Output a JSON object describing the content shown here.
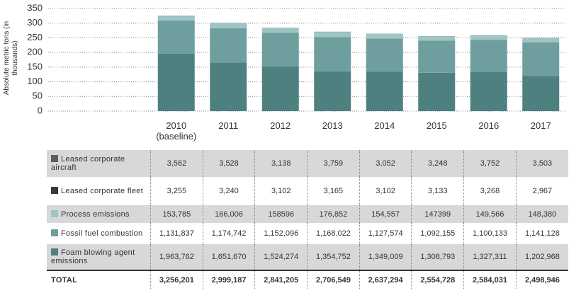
{
  "chart_data": {
    "type": "stacked-bar",
    "y_label": "Absolute metric tons (in thousands)",
    "categories": [
      "2010 (baseline)",
      "2011",
      "2012",
      "2013",
      "2014",
      "2015",
      "2016",
      "2017"
    ],
    "series": [
      {
        "name": "Foam blowing agent emissions",
        "color": "#4e8080",
        "values": [
          196.4,
          165.2,
          152.4,
          135.5,
          134.9,
          130.9,
          132.7,
          120.3
        ]
      },
      {
        "name": "Fossil fuel combustion",
        "color": "#6e9f9e",
        "values": [
          113.2,
          117.5,
          115.2,
          116.8,
          112.8,
          109.2,
          110.0,
          114.1
        ]
      },
      {
        "name": "Process emissions",
        "color": "#9dc5c4",
        "values": [
          15.4,
          16.6,
          15.9,
          17.7,
          15.5,
          14.7,
          15.0,
          14.8
        ]
      },
      {
        "name": "Leased corporate fleet",
        "color": "#3a3a3a",
        "values": [
          0.33,
          0.32,
          0.31,
          0.32,
          0.31,
          0.31,
          0.33,
          0.3
        ]
      },
      {
        "name": "Leased corporate aircraft",
        "color": "#5e5e5e",
        "values": [
          0.36,
          0.35,
          0.31,
          0.38,
          0.31,
          0.32,
          0.38,
          0.35
        ]
      }
    ],
    "ylim": [
      0,
      350
    ],
    "yticks": [
      0,
      50,
      100,
      150,
      200,
      250,
      300,
      350
    ],
    "grid": true
  },
  "table": {
    "rows": [
      [
        "1,963,762",
        "1,651,670",
        "1,524,274",
        "1,354,752",
        "1,349,009",
        "1,308,793",
        "1,327,311",
        "1,202,968"
      ],
      [
        "1,131,837",
        "1,174,742",
        "1,152,096",
        "1,168,022",
        "1,127,574",
        "1,092,155",
        "1,100,133",
        "1,141,128"
      ],
      [
        "153,785",
        "166,006",
        "158596",
        "176,852",
        "154,557",
        "147399",
        "149,566",
        "148,380"
      ],
      [
        "3,255",
        "3,240",
        "3,102",
        "3,165",
        "3,102",
        "3,133",
        "3,268",
        "2,967"
      ],
      [
        "3,562",
        "3,528",
        "3,138",
        "3,759",
        "3,052",
        "3,248",
        "3,752",
        "3,503"
      ]
    ],
    "total_label": "TOTAL",
    "totals": [
      "3,256,201",
      "2,999,187",
      "2,841,205",
      "2,706,549",
      "2,637,294",
      "2,554,728",
      "2,584,031",
      "2,498,946"
    ]
  }
}
